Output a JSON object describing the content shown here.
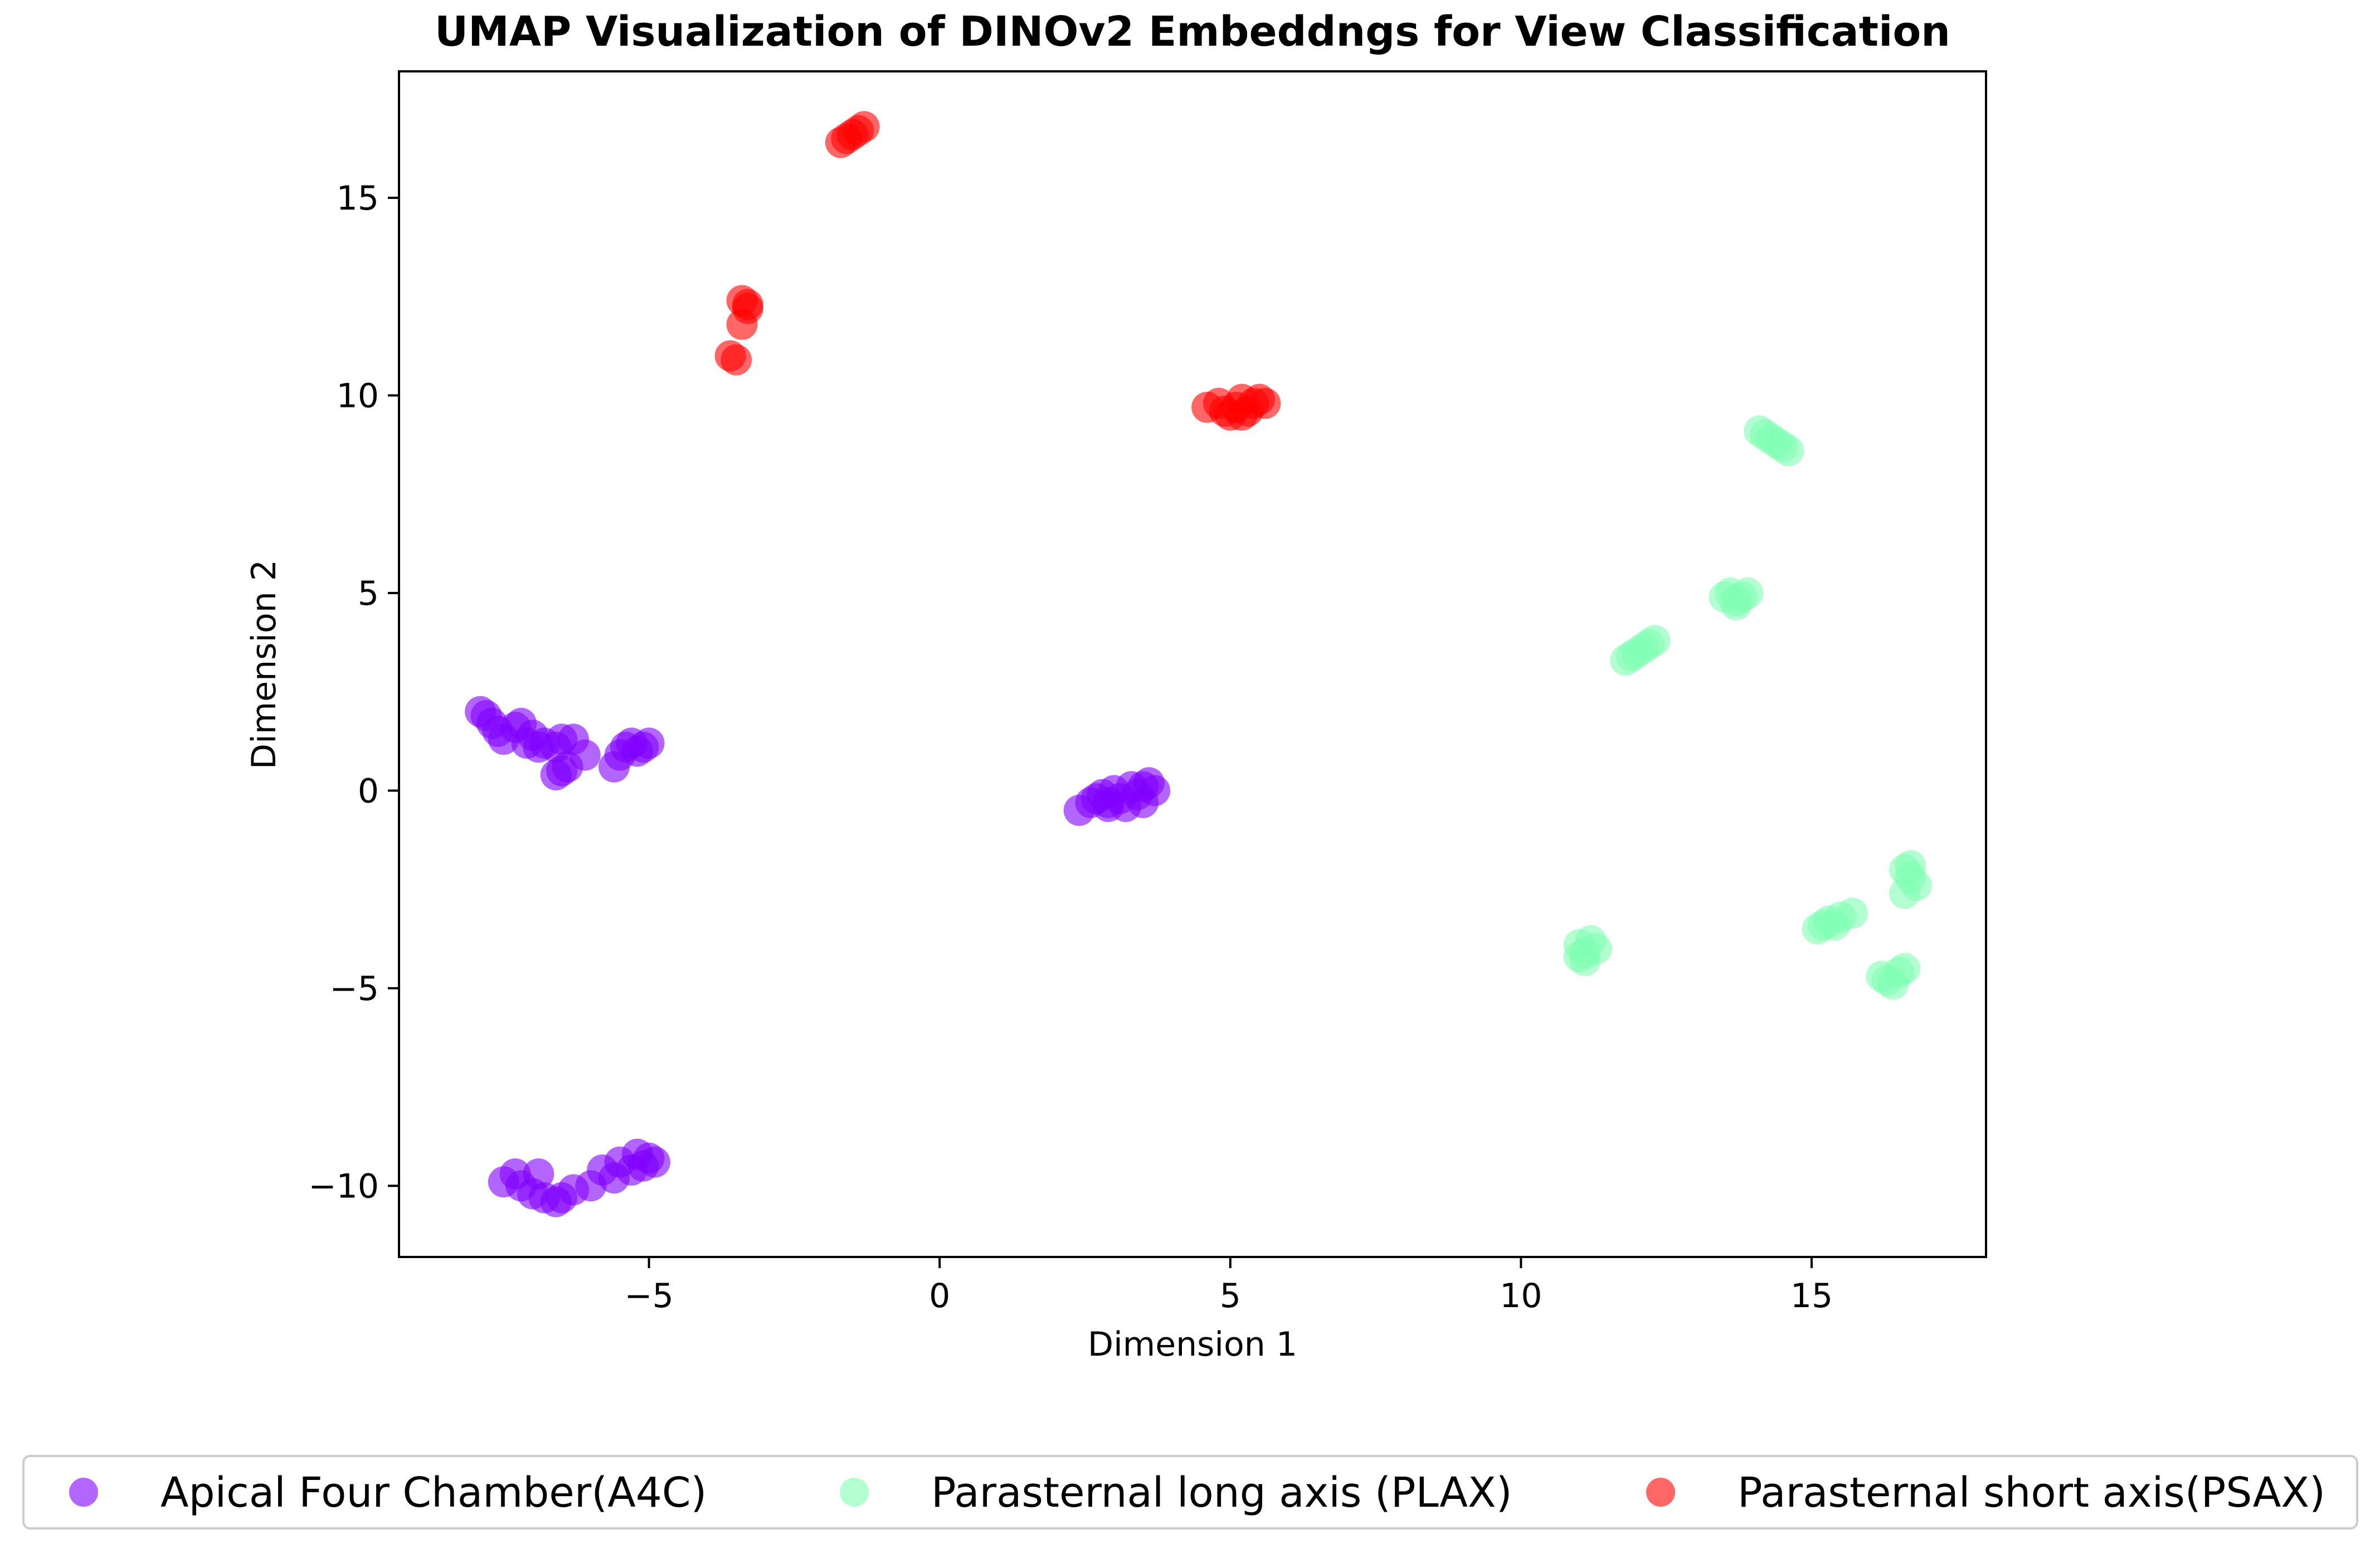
{
  "chart_data": {
    "type": "scatter",
    "title": "UMAP Visualization of DINOv2 Embeddngs for View Classification",
    "xlabel": "Dimension 1",
    "ylabel": "Dimension 2",
    "xlim": [
      -9.3,
      18
    ],
    "ylim": [
      -11.8,
      18.2
    ],
    "xticks": [
      -5,
      0,
      5,
      10,
      15
    ],
    "yticks": [
      -10,
      -5,
      0,
      5,
      10,
      15
    ],
    "xtick_labels": [
      "−5",
      "0",
      "5",
      "10",
      "15"
    ],
    "ytick_labels": [
      "−10",
      "−5",
      "0",
      "5",
      "10",
      "15"
    ],
    "grid": false,
    "legend_position": "bottom-center",
    "point_opacity": 0.6,
    "series": [
      {
        "name": "Apical Four Chamber(A4C)",
        "color": "#8000ff",
        "points": [
          [
            -7.9,
            2.0
          ],
          [
            -7.8,
            1.9
          ],
          [
            -7.7,
            1.7
          ],
          [
            -7.6,
            1.5
          ],
          [
            -7.5,
            1.3
          ],
          [
            -7.3,
            1.6
          ],
          [
            -7.2,
            1.7
          ],
          [
            -7.1,
            1.2
          ],
          [
            -7.0,
            1.4
          ],
          [
            -6.9,
            1.1
          ],
          [
            -6.8,
            1.2
          ],
          [
            -6.6,
            1.1
          ],
          [
            -6.5,
            1.3
          ],
          [
            -6.3,
            1.3
          ],
          [
            -6.1,
            0.9
          ],
          [
            -6.6,
            0.4
          ],
          [
            -6.5,
            0.5
          ],
          [
            -6.4,
            0.6
          ],
          [
            -5.6,
            0.6
          ],
          [
            -5.5,
            0.9
          ],
          [
            -5.4,
            1.1
          ],
          [
            -5.3,
            1.2
          ],
          [
            -5.2,
            1.0
          ],
          [
            -5.1,
            1.1
          ],
          [
            -5.0,
            1.2
          ],
          [
            2.4,
            -0.5
          ],
          [
            2.6,
            -0.3
          ],
          [
            2.7,
            -0.2
          ],
          [
            2.8,
            -0.1
          ],
          [
            2.9,
            -0.3
          ],
          [
            3.0,
            0.0
          ],
          [
            3.1,
            -0.2
          ],
          [
            3.2,
            -0.4
          ],
          [
            3.3,
            0.1
          ],
          [
            3.4,
            -0.1
          ],
          [
            3.5,
            -0.3
          ],
          [
            3.6,
            0.2
          ],
          [
            3.7,
            0.0
          ],
          [
            3.5,
            0.1
          ],
          [
            2.9,
            -0.4
          ],
          [
            -7.5,
            -9.9
          ],
          [
            -7.3,
            -9.7
          ],
          [
            -7.2,
            -10.0
          ],
          [
            -7.0,
            -10.2
          ],
          [
            -6.9,
            -9.7
          ],
          [
            -6.8,
            -10.3
          ],
          [
            -6.6,
            -10.4
          ],
          [
            -6.5,
            -10.3
          ],
          [
            -6.3,
            -10.1
          ],
          [
            -6.0,
            -10.0
          ],
          [
            -5.8,
            -9.6
          ],
          [
            -5.6,
            -9.8
          ],
          [
            -5.5,
            -9.4
          ],
          [
            -5.3,
            -9.6
          ],
          [
            -5.2,
            -9.2
          ],
          [
            -5.1,
            -9.5
          ],
          [
            -5.0,
            -9.3
          ],
          [
            -4.9,
            -9.4
          ]
        ]
      },
      {
        "name": "Parasternal long axis (PLAX)",
        "color": "#80ffb4",
        "points": [
          [
            14.1,
            9.1
          ],
          [
            14.2,
            9.0
          ],
          [
            14.3,
            8.9
          ],
          [
            14.4,
            8.8
          ],
          [
            14.5,
            8.7
          ],
          [
            14.6,
            8.6
          ],
          [
            13.5,
            4.9
          ],
          [
            13.6,
            5.0
          ],
          [
            13.7,
            4.8
          ],
          [
            13.8,
            4.9
          ],
          [
            13.9,
            5.0
          ],
          [
            13.7,
            4.7
          ],
          [
            11.8,
            3.3
          ],
          [
            11.9,
            3.4
          ],
          [
            12.0,
            3.5
          ],
          [
            12.1,
            3.6
          ],
          [
            12.2,
            3.7
          ],
          [
            12.3,
            3.8
          ],
          [
            11.0,
            -3.9
          ],
          [
            11.1,
            -4.1
          ],
          [
            11.2,
            -3.8
          ],
          [
            11.3,
            -4.0
          ],
          [
            11.1,
            -4.3
          ],
          [
            11.0,
            -4.2
          ],
          [
            15.1,
            -3.5
          ],
          [
            15.2,
            -3.4
          ],
          [
            15.3,
            -3.3
          ],
          [
            15.4,
            -3.4
          ],
          [
            15.5,
            -3.2
          ],
          [
            15.7,
            -3.1
          ],
          [
            16.6,
            -2.0
          ],
          [
            16.7,
            -2.2
          ],
          [
            16.8,
            -2.4
          ],
          [
            16.6,
            -2.6
          ],
          [
            16.7,
            -1.9
          ],
          [
            16.2,
            -4.7
          ],
          [
            16.3,
            -4.8
          ],
          [
            16.4,
            -4.9
          ],
          [
            16.5,
            -4.6
          ],
          [
            16.6,
            -4.5
          ]
        ]
      },
      {
        "name": "Parasternal short axis(PSAX)",
        "color": "#ff0000",
        "points": [
          [
            -1.7,
            16.4
          ],
          [
            -1.6,
            16.5
          ],
          [
            -1.5,
            16.6
          ],
          [
            -1.4,
            16.7
          ],
          [
            -1.3,
            16.8
          ],
          [
            -3.4,
            12.4
          ],
          [
            -3.3,
            12.3
          ],
          [
            -3.3,
            12.2
          ],
          [
            -3.4,
            11.8
          ],
          [
            -3.6,
            11.0
          ],
          [
            -3.5,
            10.9
          ],
          [
            4.6,
            9.7
          ],
          [
            4.8,
            9.8
          ],
          [
            4.9,
            9.6
          ],
          [
            5.0,
            9.5
          ],
          [
            5.1,
            9.7
          ],
          [
            5.2,
            9.9
          ],
          [
            5.3,
            9.6
          ],
          [
            5.4,
            9.8
          ],
          [
            5.5,
            9.9
          ],
          [
            5.6,
            9.8
          ],
          [
            5.2,
            9.5
          ]
        ]
      }
    ]
  }
}
